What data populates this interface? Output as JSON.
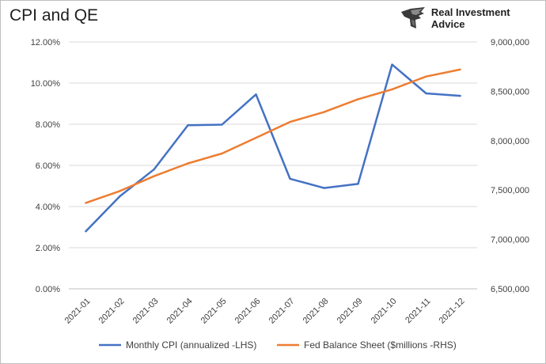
{
  "header": {
    "title": "CPI and QE",
    "brand": "Real Investment Advice"
  },
  "colors": {
    "cpi": "#4472c4",
    "balance": "#ed7d31",
    "grid": "#d9d9d9",
    "axis_text": "#404040"
  },
  "chart_data": {
    "type": "line",
    "title": "CPI and QE",
    "categories": [
      "2021-01",
      "2021-02",
      "2021-03",
      "2021-04",
      "2021-05",
      "2021-06",
      "2021-07",
      "2021-08",
      "2021-09",
      "2021-10",
      "2021-11",
      "2021-12"
    ],
    "series": [
      {
        "name": "Monthly CPI (annualized -LHS)",
        "axis": "left",
        "values": [
          2.8,
          4.5,
          5.8,
          7.95,
          7.98,
          9.45,
          5.35,
          4.9,
          5.1,
          10.9,
          9.5,
          9.38
        ]
      },
      {
        "name": "Fed Balance Sheet ($millions -RHS)",
        "axis": "right",
        "values": [
          7370000,
          7490000,
          7640000,
          7770000,
          7870000,
          8030000,
          8190000,
          8290000,
          8420000,
          8520000,
          8650000,
          8720000
        ]
      }
    ],
    "y_left": {
      "min": 0,
      "max": 12,
      "ticks": [
        0,
        2,
        4,
        6,
        8,
        10,
        12
      ],
      "tick_labels": [
        "0.00%",
        "2.00%",
        "4.00%",
        "6.00%",
        "8.00%",
        "10.00%",
        "12.00%"
      ]
    },
    "y_right": {
      "min": 6500000,
      "max": 9000000,
      "ticks": [
        6500000,
        7000000,
        7500000,
        8000000,
        8500000,
        9000000
      ],
      "tick_labels": [
        "6,500,000",
        "7,000,000",
        "7,500,000",
        "8,000,000",
        "8,500,000",
        "9,000,000"
      ]
    },
    "grid": true,
    "legend_position": "bottom"
  }
}
